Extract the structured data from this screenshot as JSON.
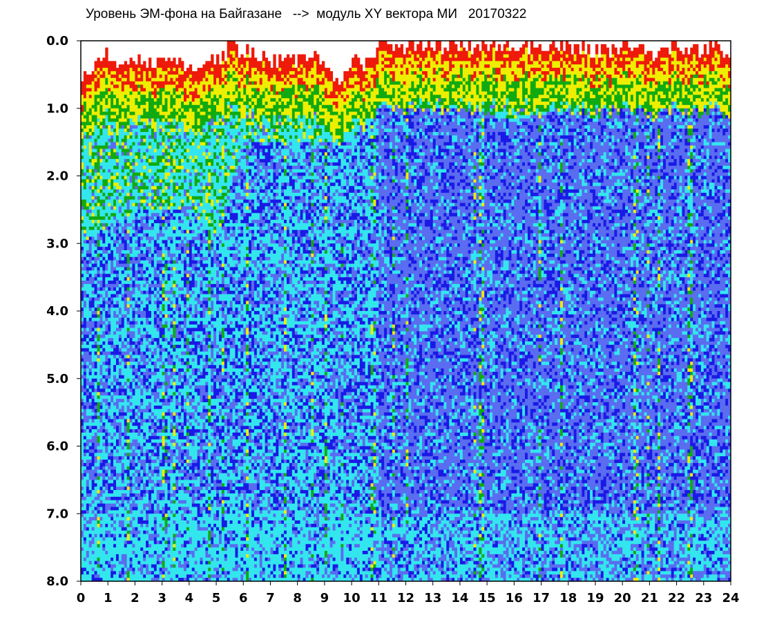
{
  "chart_data": {
    "type": "heatmap",
    "title": "Уровень ЭМ-фона на Байгазане   -->  модуль XY вектора МИ   20170322",
    "xlabel": "",
    "ylabel": "",
    "xlim": [
      0,
      24
    ],
    "ylim": [
      0.0,
      8.0
    ],
    "y_inverted": true,
    "x_ticks": [
      "0",
      "1",
      "2",
      "3",
      "4",
      "5",
      "6",
      "7",
      "8",
      "9",
      "10",
      "11",
      "12",
      "13",
      "14",
      "15",
      "16",
      "17",
      "18",
      "19",
      "20",
      "21",
      "22",
      "23",
      "24"
    ],
    "y_ticks": [
      "0.0",
      "1.0",
      "2.0",
      "3.0",
      "4.0",
      "5.0",
      "6.0",
      "7.0",
      "8.0"
    ],
    "grid": false,
    "colormap": [
      "#1a1ae6",
      "#5a6cf0",
      "#33e6ee",
      "#11aa11",
      "#eeee00",
      "#ee1a0a"
    ],
    "signal_envelope_top": {
      "x": [
        0,
        0.5,
        1,
        1.5,
        2,
        2.5,
        3,
        3.5,
        4,
        4.5,
        5,
        5.5,
        6,
        6.5,
        7,
        7.5,
        8,
        8.5,
        9,
        9.5,
        10,
        10.5,
        11,
        11.5,
        12,
        12.5,
        13,
        13.5,
        14,
        14.5,
        15,
        15.5,
        16,
        16.5,
        17,
        17.5,
        18,
        18.5,
        19,
        19.5,
        20,
        20.5,
        21,
        21.5,
        22,
        22.5,
        23,
        23.5,
        24
      ],
      "y": [
        0.5,
        0.35,
        0.2,
        0.4,
        0.3,
        0.3,
        0.35,
        0.3,
        0.45,
        0.35,
        0.3,
        0.1,
        0.15,
        0.2,
        0.3,
        0.25,
        0.3,
        0.2,
        0.3,
        0.7,
        0.25,
        0.35,
        0.05,
        0.1,
        0.1,
        0.05,
        0.1,
        0.05,
        0.05,
        0.1,
        0.05,
        0.05,
        0.05,
        0.05,
        0.1,
        0.05,
        0.1,
        0.1,
        0.15,
        0.15,
        0.1,
        0.1,
        0.2,
        0.1,
        0.1,
        0.15,
        0.1,
        0.1,
        0.15
      ]
    },
    "dense_level_boundary": {
      "x": [
        0,
        2,
        4,
        5,
        6,
        8,
        10,
        11,
        12,
        14,
        16,
        18,
        20,
        22,
        24
      ],
      "y": [
        3.0,
        2.5,
        2.5,
        3.0,
        1.5,
        1.5,
        1.5,
        1.0,
        1.0,
        1.0,
        1.2,
        1.0,
        1.0,
        1.0,
        1.0
      ]
    }
  }
}
